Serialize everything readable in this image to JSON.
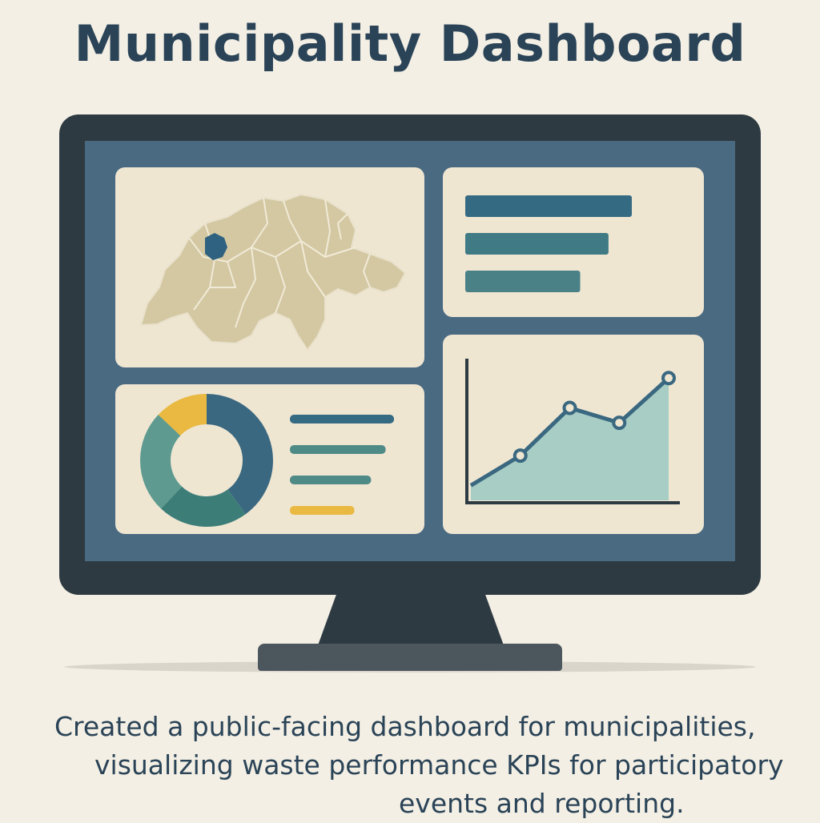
{
  "title": "Municipality Dashboard",
  "caption": {
    "line1": "Created a public-facing dashboard for municipalities,",
    "line2": "visualizing waste performance KPIs for participatory",
    "line3": "events and reporting."
  },
  "colors": {
    "background": "#f3efe4",
    "title": "#2a4357",
    "monitor_bezel": "#2e3a42",
    "screen": "#4a6a82",
    "panel": "#efe6d2",
    "map_fill": "#d3c8a2",
    "map_highlight": "#2f6280",
    "dark_teal": "#3a6880",
    "mid_teal": "#4e8a86",
    "yellow": "#e9b941",
    "area_fill": "#a8cdc5"
  },
  "map_panel": {
    "icon": "switzerland-map-icon",
    "highlighted_region": "canton-highlight"
  },
  "bar_panel": {
    "bars": [
      {
        "value": 1.0,
        "color": "#356a83"
      },
      {
        "value": 0.86,
        "color": "#3f7a85"
      },
      {
        "value": 0.69,
        "color": "#4a8187"
      }
    ]
  },
  "donut_panel": {
    "segments": [
      {
        "value": 0.4,
        "color": "#3a6880"
      },
      {
        "value": 0.22,
        "color": "#3d7d78"
      },
      {
        "value": 0.25,
        "color": "#5e9a90"
      },
      {
        "value": 0.13,
        "color": "#e9b941"
      }
    ],
    "legend_bars": [
      {
        "value": 1.0,
        "color": "#356a83"
      },
      {
        "value": 0.92,
        "color": "#4e8a86"
      },
      {
        "value": 0.78,
        "color": "#4e8a86"
      },
      {
        "value": 0.62,
        "color": "#e9b941"
      }
    ]
  },
  "chart_data": {
    "type": "area",
    "x": [
      0,
      1,
      2,
      3,
      4
    ],
    "y": [
      1.0,
      3.0,
      6.2,
      5.2,
      8.2
    ],
    "xlim": [
      0,
      4
    ],
    "ylim": [
      0,
      9.5
    ],
    "title": "",
    "xlabel": "",
    "ylabel": "",
    "grid": false,
    "line_color": "#3a6880",
    "area_color": "#a8cdc5"
  }
}
